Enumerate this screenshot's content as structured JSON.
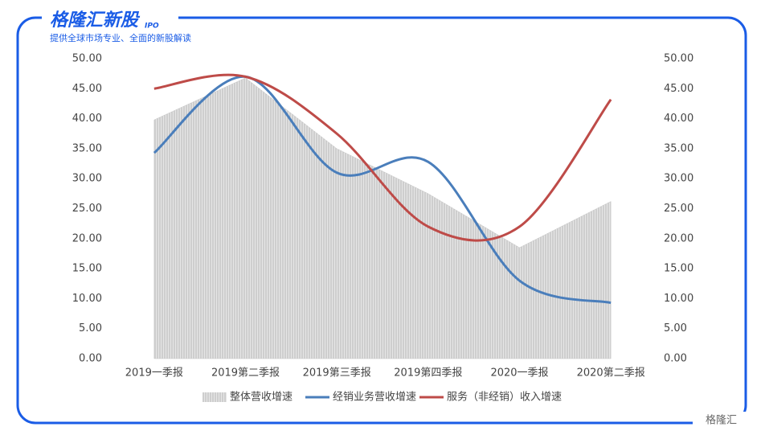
{
  "brand": {
    "logo": "格隆汇新股",
    "logo_tag": "IPO",
    "subtitle": "提供全球市场专业、全面的新股解读",
    "watermark": "格隆汇"
  },
  "chart_data": {
    "type": "line",
    "categories": [
      "2019一季报",
      "2019第二季报",
      "2019第三季报",
      "2019第四季报",
      "2020一季报",
      "2020第二季报"
    ],
    "series": [
      {
        "name": "整体营收增速",
        "color": "#c8c8c8",
        "style": "area",
        "values": [
          39.8,
          46.8,
          35.0,
          27.5,
          18.5,
          26.2
        ]
      },
      {
        "name": "经销业务营收增速",
        "color": "#4a7ebb",
        "style": "line",
        "values": [
          34.3,
          47.0,
          31.0,
          32.8,
          13.0,
          9.3
        ]
      },
      {
        "name": "服务（非经销）收入增速",
        "color": "#be4b48",
        "style": "line",
        "values": [
          45.0,
          47.0,
          37.5,
          22.0,
          22.0,
          43.2
        ]
      }
    ],
    "ylim": [
      0,
      50
    ],
    "yticks": [
      {
        "value": 0,
        "label": "0.00"
      },
      {
        "value": 5,
        "label": "5.00"
      },
      {
        "value": 10,
        "label": "10.00"
      },
      {
        "value": 15,
        "label": "15.00"
      },
      {
        "value": 20,
        "label": "20.00"
      },
      {
        "value": 25,
        "label": "25.00"
      },
      {
        "value": 30,
        "label": "30.00"
      },
      {
        "value": 35,
        "label": "35.00"
      },
      {
        "value": 40,
        "label": "40.00"
      },
      {
        "value": 45,
        "label": "45.00"
      },
      {
        "value": 50,
        "label": "50.00"
      }
    ],
    "y2lim": [
      0,
      50
    ],
    "y2ticks": [
      {
        "value": 0,
        "label": "0.00"
      },
      {
        "value": 5,
        "label": "5.00"
      },
      {
        "value": 10,
        "label": "10.00"
      },
      {
        "value": 15,
        "label": "15.00"
      },
      {
        "value": 20,
        "label": "20.00"
      },
      {
        "value": 25,
        "label": "25.00"
      },
      {
        "value": 30,
        "label": "30.00"
      },
      {
        "value": 35,
        "label": "35.00"
      },
      {
        "value": 40,
        "label": "40.00"
      },
      {
        "value": 45,
        "label": "45.00"
      },
      {
        "value": 50,
        "label": "50.00"
      }
    ],
    "grid": false,
    "legend": "bottom"
  }
}
